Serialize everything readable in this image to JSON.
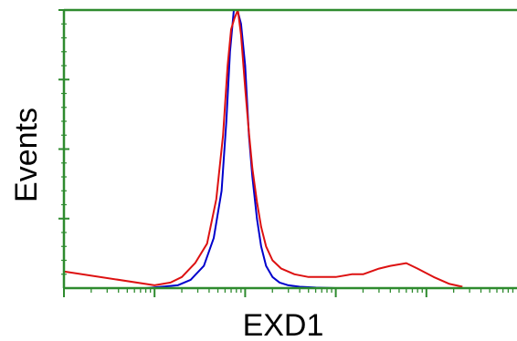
{
  "chart_data": {
    "type": "line",
    "title": "",
    "xlabel": "EXD1",
    "ylabel": "Events",
    "x_scale": "log",
    "xlim": [
      1,
      100000
    ],
    "ylim": [
      0,
      100
    ],
    "grid": false,
    "legend": "none",
    "axis_color": "#2e8b2e",
    "series": [
      {
        "color": "#0000cc",
        "x": [
          8,
          12,
          18,
          25,
          35,
          45,
          55,
          62,
          68,
          75,
          82,
          90,
          100,
          110,
          120,
          135,
          150,
          170,
          200,
          240,
          300,
          400,
          600,
          1000
        ],
        "y": [
          0,
          0.5,
          1,
          3,
          8,
          18,
          35,
          60,
          85,
          100,
          100,
          95,
          80,
          55,
          40,
          25,
          15,
          8,
          4,
          2,
          1,
          0.5,
          0.2,
          0
        ]
      },
      {
        "color": "#dd1111",
        "x": [
          1,
          10,
          15,
          20,
          28,
          38,
          48,
          57,
          64,
          70,
          76,
          83,
          90,
          100,
          110,
          120,
          135,
          150,
          170,
          200,
          250,
          350,
          500,
          700,
          1000,
          1500,
          2000,
          3000,
          4000,
          6000,
          8000,
          12000,
          18000,
          25000
        ],
        "y": [
          6,
          1,
          2,
          4,
          9,
          16,
          32,
          55,
          80,
          93,
          97,
          100,
          91,
          72,
          56,
          43,
          31,
          22,
          15,
          10,
          7,
          5,
          4,
          4,
          4,
          5,
          5,
          7,
          8,
          9,
          7,
          4,
          1.5,
          0.5
        ]
      }
    ]
  }
}
